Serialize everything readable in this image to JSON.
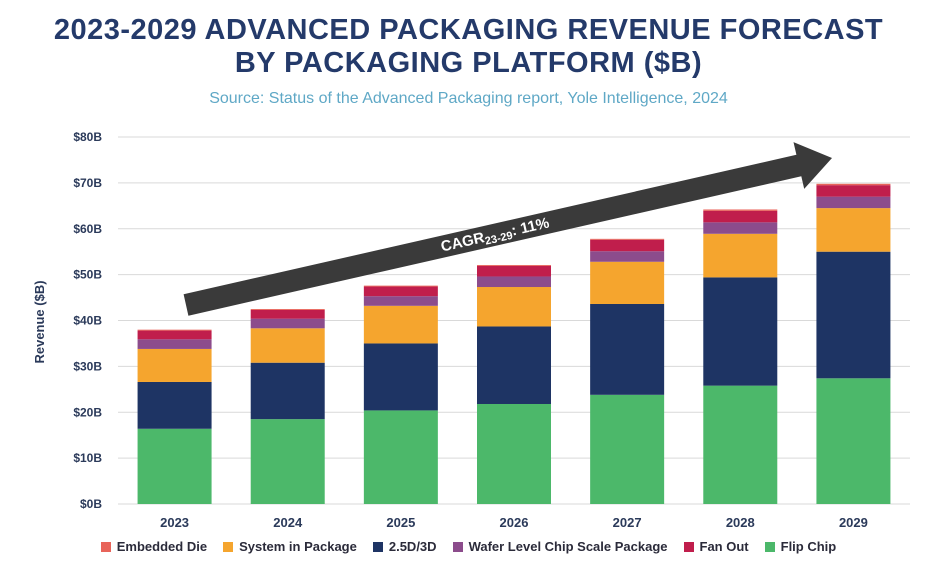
{
  "title_line1": "2023-2029 ADVANCED PACKAGING REVENUE FORECAST",
  "title_line2": "BY PACKAGING PLATFORM ($B)",
  "subtitle": "Source: Status of the Advanced Packaging report, Yole Intelligence, 2024",
  "chart_data": {
    "type": "bar",
    "stacked": true,
    "title": "2023-2029 ADVANCED PACKAGING REVENUE FORECAST BY PACKAGING PLATFORM ($B)",
    "xlabel": "",
    "ylabel": "Revenue ($B)",
    "ylim": [
      0,
      80
    ],
    "yticks": [
      0,
      10,
      20,
      30,
      40,
      50,
      60,
      70,
      80
    ],
    "ytick_labels": [
      "$0B",
      "$10B",
      "$20B",
      "$30B",
      "$40B",
      "$50B",
      "$60B",
      "$70B",
      "$80B"
    ],
    "grid": true,
    "legend_position": "bottom",
    "categories": [
      "2023",
      "2024",
      "2025",
      "2026",
      "2027",
      "2028",
      "2029"
    ],
    "series": [
      {
        "name": "Flip Chip",
        "color": "#4cb86a",
        "values": [
          16.4,
          18.5,
          20.4,
          21.8,
          23.8,
          25.8,
          27.4
        ]
      },
      {
        "name": "2.5D/3D",
        "color": "#1e3464",
        "values": [
          10.2,
          12.3,
          14.6,
          16.9,
          19.8,
          23.6,
          27.6
        ]
      },
      {
        "name": "System in Package",
        "color": "#f5a52e",
        "values": [
          7.2,
          7.5,
          8.2,
          8.6,
          9.2,
          9.5,
          9.5
        ]
      },
      {
        "name": "Wafer Level Chip Scale Package",
        "color": "#8c4c8c",
        "values": [
          2.1,
          2.1,
          2.1,
          2.3,
          2.3,
          2.5,
          2.5
        ]
      },
      {
        "name": "Fan Out",
        "color": "#c01e4c",
        "values": [
          1.9,
          1.9,
          2.1,
          2.3,
          2.5,
          2.5,
          2.5
        ]
      },
      {
        "name": "Embedded Die",
        "color": "#e8645a",
        "values": [
          0.2,
          0.2,
          0.2,
          0.2,
          0.2,
          0.3,
          0.3
        ]
      }
    ],
    "legend_order": [
      "Embedded Die",
      "System in Package",
      "2.5D/3D",
      "Wafer Level Chip Scale Package",
      "Fan Out",
      "Flip Chip"
    ],
    "annotation": {
      "prefix": "CAGR",
      "subscript": "23-29",
      "suffix": ": 11%",
      "color": "#3c3c3c"
    }
  }
}
